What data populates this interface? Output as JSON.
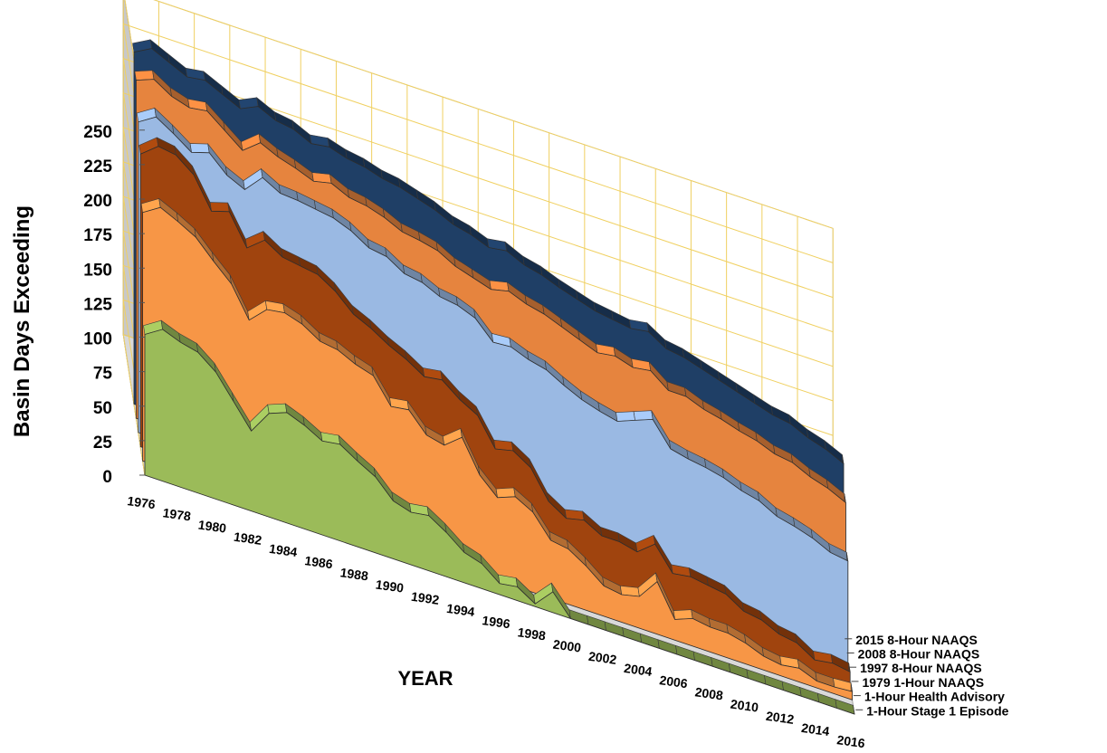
{
  "chart_data": {
    "type": "area",
    "title": "",
    "xlabel": "YEAR",
    "ylabel": "Basin Days Exceeding",
    "ylim": [
      0,
      250
    ],
    "yticks": [
      0,
      25,
      50,
      75,
      100,
      125,
      150,
      175,
      200,
      225,
      250
    ],
    "x": [
      1976,
      1977,
      1978,
      1979,
      1980,
      1981,
      1982,
      1983,
      1984,
      1985,
      1986,
      1987,
      1988,
      1989,
      1990,
      1991,
      1992,
      1993,
      1994,
      1995,
      1996,
      1997,
      1998,
      1999,
      2000,
      2001,
      2002,
      2003,
      2004,
      2005,
      2006,
      2007,
      2008,
      2009,
      2010,
      2011,
      2012,
      2013,
      2014,
      2015,
      2016
    ],
    "xticks": [
      1976,
      1978,
      1980,
      1982,
      1984,
      1986,
      1988,
      1990,
      1992,
      1994,
      1996,
      1998,
      2000,
      2002,
      2004,
      2006,
      2008,
      2010,
      2012,
      2014,
      2016
    ],
    "grid": true,
    "colors": {
      "stage1": "#9bbb59",
      "health": "#f79646",
      "naaqs1979": "#a0440e",
      "naaqs1997": "#9ab9e3",
      "naaqs2008": "#e6843e",
      "naaqs2015": "#1f3f66",
      "grid": "#f0d060"
    },
    "series": [
      {
        "name": "1-Hour Stage 1 Episode",
        "key": "stage1",
        "values": [
          102,
          110,
          105,
          102,
          92,
          75,
          58,
          75,
          80,
          75,
          68,
          70,
          62,
          55,
          42,
          38,
          40,
          32,
          22,
          18,
          8,
          10,
          2,
          15,
          0,
          0,
          0,
          0,
          0,
          0,
          0,
          0,
          0,
          0,
          0,
          0,
          0,
          0,
          0,
          0,
          0
        ]
      },
      {
        "name": "1-Hour Health Advisory",
        "key": "health",
        "values": [
          180,
          188,
          182,
          175,
          162,
          150,
          128,
          140,
          142,
          138,
          130,
          128,
          122,
          118,
          100,
          102,
          88,
          85,
          95,
          72,
          60,
          65,
          58,
          42,
          40,
          32,
          22,
          20,
          23,
          38,
          15,
          20,
          18,
          18,
          15,
          10,
          8,
          10,
          5,
          5,
          6
        ]
      },
      {
        "name": "1979 1-Hour NAAQS",
        "key": "naaqs1979",
        "values": [
          212,
          222,
          220,
          210,
          188,
          192,
          170,
          180,
          172,
          170,
          168,
          160,
          148,
          142,
          134,
          128,
          120,
          122,
          112,
          105,
          85,
          88,
          80,
          60,
          52,
          55,
          48,
          48,
          45,
          55,
          38,
          40,
          38,
          36,
          28,
          26,
          20,
          18,
          10,
          12,
          10
        ]
      },
      {
        "name": "1997 8-Hour  NAAQS",
        "key": "naaqs1997",
        "values": [
          225,
          233,
          225,
          216,
          220,
          208,
          202,
          215,
          208,
          207,
          205,
          203,
          198,
          190,
          188,
          180,
          178,
          172,
          170,
          165,
          152,
          153,
          148,
          145,
          138,
          132,
          128,
          125,
          130,
          135,
          118,
          115,
          113,
          110,
          105,
          102,
          95,
          92,
          88,
          82,
          80
        ]
      },
      {
        "name": "2008 8-Hour NAAQS",
        "key": "naaqs2008",
        "values": [
          245,
          250,
          242,
          238,
          240,
          230,
          220,
          230,
          224,
          220,
          215,
          218,
          212,
          210,
          206,
          200,
          198,
          195,
          188,
          184,
          180,
          183,
          178,
          175,
          170,
          165,
          160,
          162,
          158,
          160,
          150,
          150,
          145,
          142,
          138,
          135,
          130,
          128,
          122,
          118,
          112
        ]
      },
      {
        "name": "2015 8-Hour NAAQS",
        "key": "naaqs2015",
        "values": [
          255,
          262,
          256,
          250,
          252,
          246,
          240,
          246,
          240,
          238,
          232,
          234,
          230,
          228,
          224,
          222,
          218,
          214,
          208,
          205,
          200,
          202,
          196,
          193,
          188,
          184,
          180,
          178,
          176,
          178,
          170,
          168,
          164,
          160,
          156,
          152,
          148,
          146,
          140,
          136,
          130
        ]
      }
    ]
  }
}
